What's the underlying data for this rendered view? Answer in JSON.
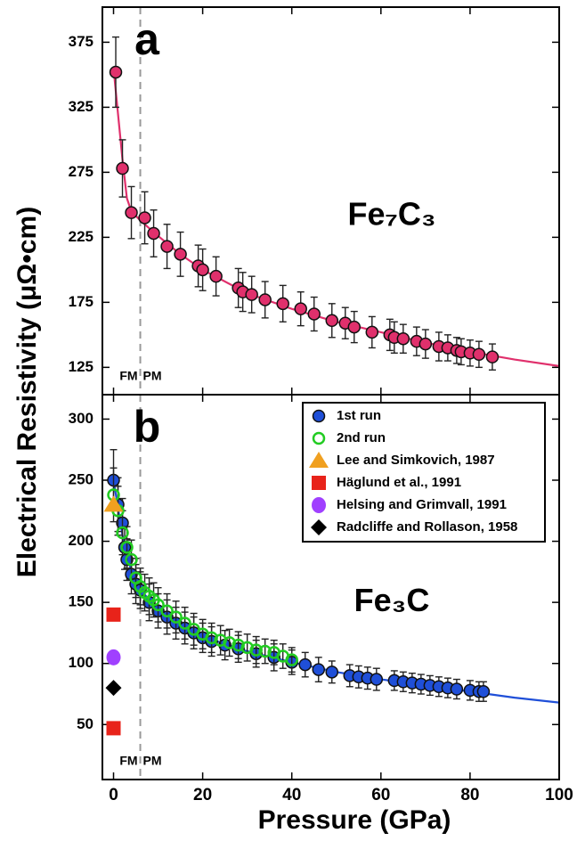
{
  "chart_data": [
    {
      "type": "scatter",
      "panel_label": "a",
      "annotation": "Fe₇C₃",
      "phase_labels": [
        "FM",
        "PM"
      ],
      "transition_x": 6,
      "ylabel": "Electrical Resistivity (μΩ•cm)",
      "xlim": [
        -2.5,
        100
      ],
      "ylim": [
        104,
        402
      ],
      "yticks": [
        125,
        175,
        225,
        275,
        325,
        375
      ],
      "series": [
        {
          "color": "#e0306c",
          "marker": "circle",
          "x": [
            0.5,
            2,
            4,
            7,
            9,
            12,
            15,
            19,
            20,
            23,
            28,
            29,
            31,
            34,
            38,
            42,
            45,
            49,
            52,
            54,
            58,
            62,
            63,
            65,
            68,
            70,
            73,
            75,
            77,
            78,
            80,
            82,
            85
          ],
          "values": [
            352,
            278,
            244,
            240,
            228,
            218,
            212,
            203,
            200,
            195,
            186,
            183,
            181,
            177,
            174,
            170,
            166,
            161,
            159,
            156,
            152,
            150,
            148,
            147,
            145,
            143,
            141,
            140,
            138,
            137,
            136,
            135,
            133
          ],
          "errors": [
            27,
            22,
            20,
            20,
            18,
            17,
            17,
            16,
            16,
            15,
            15,
            15,
            14,
            14,
            14,
            13,
            13,
            13,
            12,
            12,
            12,
            12,
            12,
            11,
            11,
            11,
            11,
            10,
            10,
            10,
            10,
            10,
            10
          ]
        }
      ],
      "fit": {
        "color": "#e0306c",
        "x": [
          0,
          1,
          2,
          3,
          4,
          6,
          10,
          15,
          20,
          30,
          40,
          50,
          60,
          70,
          80,
          90,
          100
        ],
        "values": [
          355,
          320,
          285,
          255,
          245,
          238,
          226,
          212,
          200,
          182,
          170,
          160,
          152,
          144,
          137,
          131,
          126
        ]
      }
    },
    {
      "type": "scatter",
      "panel_label": "b",
      "annotation": "Fe₃C",
      "phase_labels": [
        "FM",
        "PM"
      ],
      "transition_x": 6,
      "xlabel": "Pressure (GPa)",
      "xlim": [
        -2.5,
        100
      ],
      "xticks": [
        0,
        20,
        40,
        60,
        80,
        100
      ],
      "ylim": [
        5,
        320
      ],
      "yticks": [
        50,
        100,
        150,
        200,
        250,
        300
      ],
      "legend": "upper right",
      "series": [
        {
          "name": "1st run",
          "color": "#1f4fd8",
          "marker": "circle",
          "x": [
            0,
            1,
            2,
            2.5,
            3,
            4,
            5,
            6,
            8,
            10,
            12,
            14,
            16,
            18,
            20,
            22,
            25,
            28,
            32,
            36,
            40,
            43,
            46,
            49,
            53,
            55,
            57,
            59,
            63,
            65,
            67,
            69,
            71,
            73,
            75,
            77,
            80,
            82,
            83
          ],
          "values": [
            250,
            230,
            215,
            195,
            185,
            173,
            165,
            160,
            150,
            143,
            138,
            133,
            129,
            125,
            121,
            118,
            115,
            112,
            108,
            105,
            101,
            99,
            95,
            93,
            90,
            89,
            88,
            87,
            86,
            85,
            84,
            83,
            82,
            81,
            80,
            79,
            78,
            77,
            77
          ],
          "errors": [
            25,
            22,
            20,
            18,
            17,
            16,
            16,
            15,
            15,
            14,
            14,
            13,
            13,
            13,
            12,
            12,
            12,
            11,
            11,
            11,
            10,
            10,
            10,
            9,
            9,
            9,
            9,
            9,
            8,
            8,
            8,
            8,
            8,
            8,
            8,
            8,
            8,
            8,
            8
          ]
        },
        {
          "name": "2nd run",
          "color": "#22cc22",
          "marker": "open-circle",
          "x": [
            0,
            1,
            2,
            3,
            4,
            5,
            6,
            7,
            8,
            9,
            10,
            12,
            14,
            16,
            18,
            20,
            22,
            24,
            26,
            28,
            30,
            32,
            34,
            36,
            38,
            40
          ],
          "values": [
            238,
            225,
            207,
            195,
            185,
            170,
            163,
            158,
            155,
            152,
            148,
            143,
            138,
            133,
            128,
            124,
            121,
            119,
            117,
            115,
            113,
            111,
            110,
            109,
            106,
            103
          ],
          "errors": [
            22,
            20,
            18,
            17,
            16,
            16,
            15,
            15,
            15,
            14,
            14,
            14,
            13,
            13,
            13,
            12,
            12,
            12,
            11,
            11,
            11,
            11,
            10,
            10,
            10,
            10
          ]
        },
        {
          "name": "Lee and Simkovich, 1987",
          "color": "#f0a020",
          "marker": "triangle",
          "x": [
            0
          ],
          "values": [
            230
          ]
        },
        {
          "name": "Häglund et al., 1991",
          "color": "#e8231a",
          "marker": "square",
          "x": [
            0,
            0
          ],
          "values": [
            140,
            47
          ]
        },
        {
          "name": "Helsing and Grimvall, 1991",
          "color": "#a040ff",
          "marker": "circle-plain",
          "x": [
            0
          ],
          "values": [
            105
          ]
        },
        {
          "name": "Radcliffe and Rollason, 1958",
          "color": "#000000",
          "marker": "diamond",
          "x": [
            0
          ],
          "values": [
            80
          ]
        }
      ],
      "fit": {
        "color": "#1f4fd8",
        "x": [
          0,
          2,
          4,
          6,
          10,
          20,
          30,
          40,
          50,
          60,
          70,
          80,
          90,
          100
        ],
        "values": [
          250,
          205,
          175,
          160,
          145,
          122,
          110,
          101,
          93,
          87,
          82,
          77,
          72,
          68
        ]
      }
    }
  ]
}
